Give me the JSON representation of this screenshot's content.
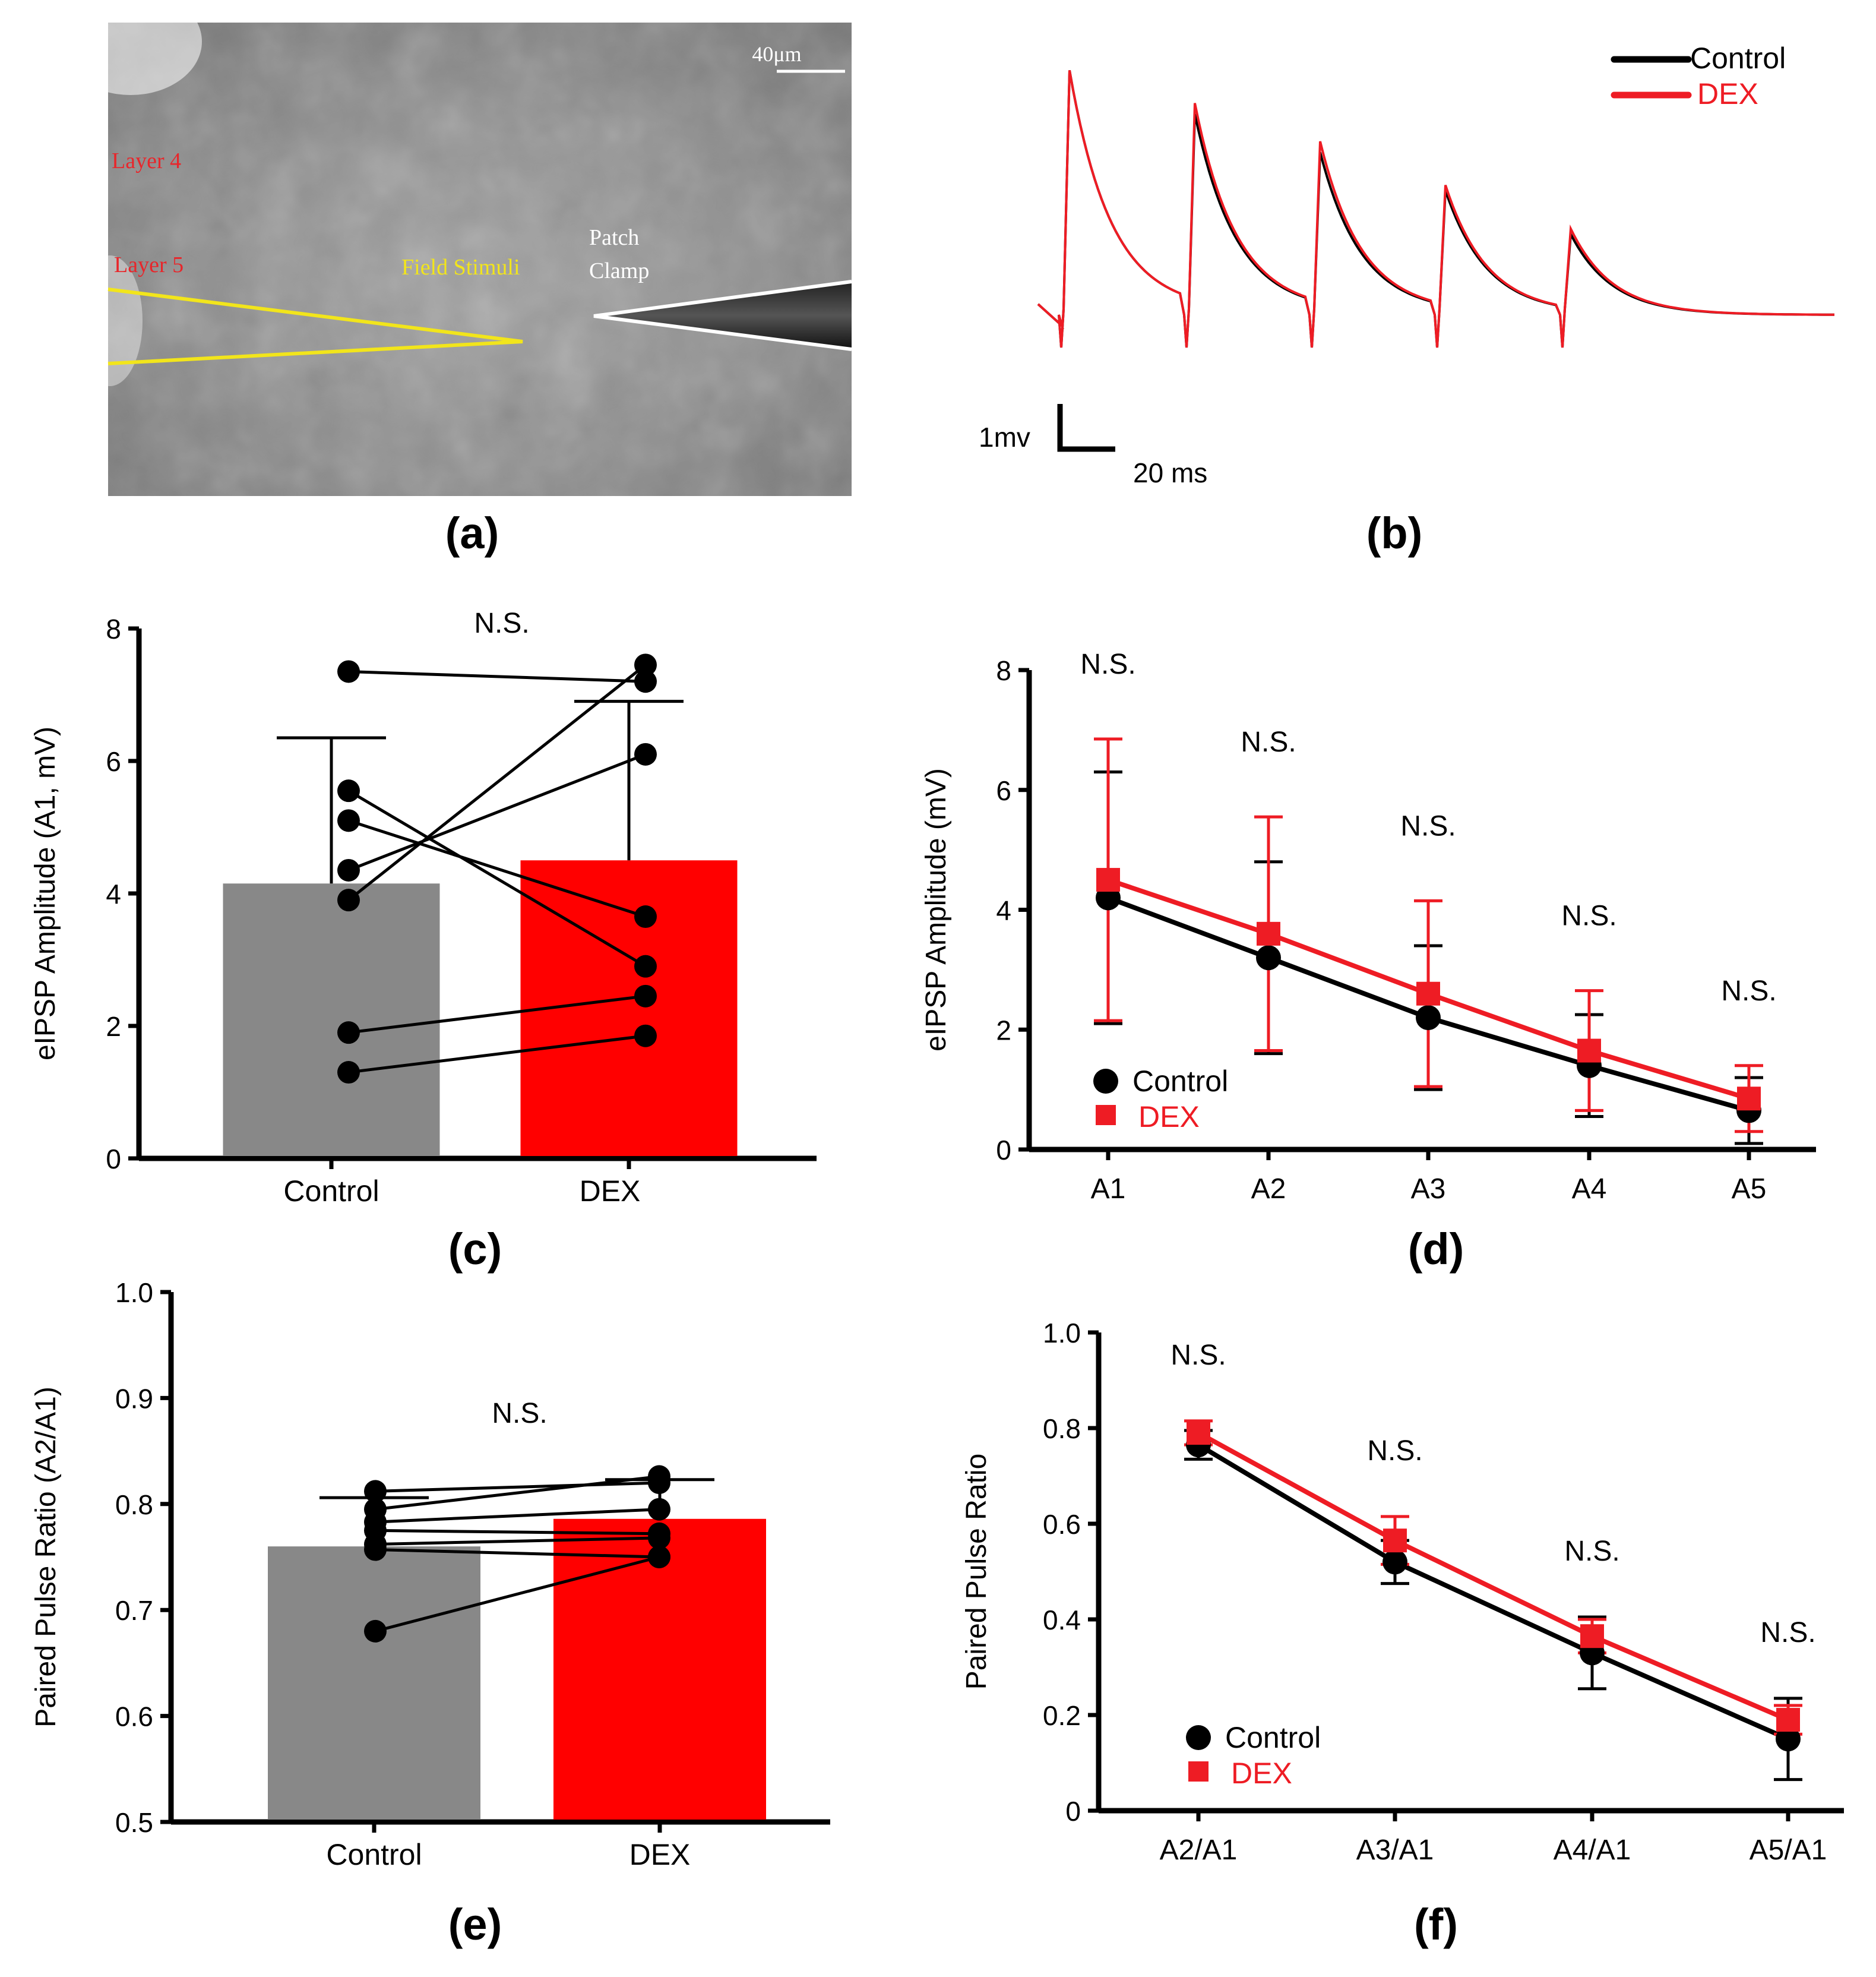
{
  "panel_labels": {
    "a": "(a)",
    "b": "(b)",
    "c": "(c)",
    "d": "(d)",
    "e": "(e)",
    "f": "(f)"
  },
  "micrograph": {
    "scale_bar_label": "40μm",
    "layer4_label": "Layer 4",
    "layer5_label": "Layer 5",
    "stim_label": "Field Stimuli",
    "patch_label_line1": "Patch",
    "patch_label_line2": "Clamp",
    "colors": {
      "layer": "#e8262b",
      "stim": "#f2e51b",
      "patch": "#ffffff"
    }
  },
  "colors": {
    "control": "#000000",
    "dex": "#ee1c24",
    "control_bar": "#888888",
    "dex_bar": "#ff0000"
  },
  "chart_data": [
    {
      "panel": "b",
      "type": "line",
      "series": [
        {
          "name": "Control",
          "color": "#000000",
          "peaks": [
            4.8,
            4.0,
            3.3,
            2.6,
            1.8
          ]
        },
        {
          "name": "DEX",
          "color": "#ee1c24",
          "peaks": [
            4.8,
            4.2,
            3.5,
            2.7,
            1.9
          ]
        }
      ],
      "scalebar_y_label": "1mv",
      "scalebar_x_label": "20 ms"
    },
    {
      "panel": "c",
      "type": "bar",
      "categories": [
        "Control",
        "DEX"
      ],
      "values": [
        4.15,
        4.5
      ],
      "errors": [
        2.2,
        2.4
      ],
      "paired": [
        [
          7.35,
          7.2
        ],
        [
          5.55,
          2.9
        ],
        [
          5.1,
          3.65
        ],
        [
          4.35,
          6.1
        ],
        [
          3.9,
          7.45
        ],
        [
          1.9,
          2.45
        ],
        [
          1.3,
          1.85
        ]
      ],
      "ylabel": "eIPSP Amplitude (A1, mV)",
      "ylim": [
        0,
        8
      ],
      "yticks": [
        "0",
        "2",
        "4",
        "6",
        "8"
      ],
      "annotation": "N.S."
    },
    {
      "panel": "d",
      "type": "line",
      "categories": [
        "A1",
        "A2",
        "A3",
        "A4",
        "A5"
      ],
      "series": [
        {
          "name": "Control",
          "values": [
            4.2,
            3.2,
            2.2,
            1.4,
            0.65
          ],
          "errors": [
            2.1,
            1.6,
            1.2,
            0.85,
            0.55
          ]
        },
        {
          "name": "DEX",
          "values": [
            4.5,
            3.6,
            2.6,
            1.65,
            0.85
          ],
          "errors": [
            2.35,
            1.95,
            1.55,
            1.0,
            0.55
          ]
        }
      ],
      "ylabel": "eIPSP Amplitude (mV)",
      "ylim": [
        0,
        8
      ],
      "yticks": [
        "0",
        "2",
        "4",
        "6",
        "8"
      ],
      "annotations": [
        "N.S.",
        "N.S.",
        "N.S.",
        "N.S.",
        "N.S."
      ],
      "legend": [
        "Control",
        "DEX"
      ]
    },
    {
      "panel": "e",
      "type": "bar",
      "categories": [
        "Control",
        "DEX"
      ],
      "values": [
        0.76,
        0.786
      ],
      "errors": [
        0.046,
        0.037
      ],
      "paired": [
        [
          0.812,
          0.82
        ],
        [
          0.795,
          0.826
        ],
        [
          0.783,
          0.795
        ],
        [
          0.775,
          0.772
        ],
        [
          0.762,
          0.768
        ],
        [
          0.757,
          0.75
        ],
        [
          0.68,
          0.75
        ]
      ],
      "ylabel": "Paired Pulse Ratio (A2/A1)",
      "ylim": [
        0.5,
        1.0
      ],
      "yticks": [
        "0.5",
        "0.6",
        "0.7",
        "0.8",
        "0.9",
        "1.0"
      ],
      "annotation": "N.S."
    },
    {
      "panel": "f",
      "type": "line",
      "categories": [
        "A2/A1",
        "A3/A1",
        "A4/A1",
        "A5/A1"
      ],
      "series": [
        {
          "name": "Control",
          "values": [
            0.765,
            0.52,
            0.33,
            0.15
          ],
          "errors": [
            0.03,
            0.045,
            0.075,
            0.085
          ]
        },
        {
          "name": "DEX",
          "values": [
            0.79,
            0.565,
            0.365,
            0.19
          ],
          "errors": [
            0.025,
            0.05,
            0.035,
            0.03
          ]
        }
      ],
      "ylabel": "Paired Pulse Ratio",
      "ylim": [
        0,
        1.0
      ],
      "yticks": [
        "0",
        "0.2",
        "0.4",
        "0.6",
        "0.8",
        "1.0"
      ],
      "annotations": [
        "N.S.",
        "N.S.",
        "N.S.",
        "N.S."
      ],
      "legend": [
        "Control",
        "DEX"
      ]
    }
  ]
}
